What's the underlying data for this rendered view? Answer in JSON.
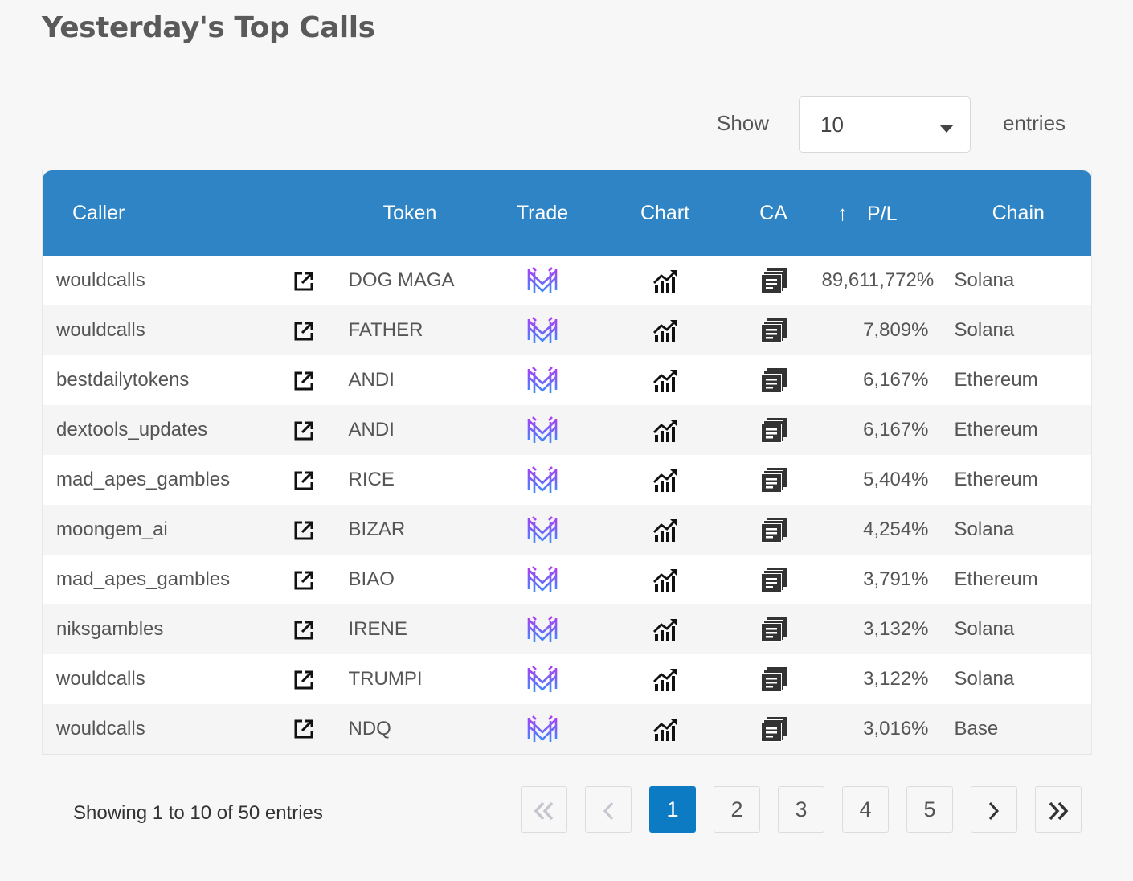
{
  "page": {
    "title": "Yesterday's Top Calls"
  },
  "length_menu": {
    "show_label": "Show",
    "selected": "10",
    "entries_label": "entries"
  },
  "table": {
    "columns": {
      "caller": "Caller",
      "token": "Token",
      "trade": "Trade",
      "chart": "Chart",
      "ca": "CA",
      "pl": "P/L",
      "chain": "Chain"
    },
    "sort": {
      "column": "P/L",
      "direction": "up-arrow-icon"
    },
    "rows": [
      {
        "caller": "wouldcalls",
        "token": "DOG MAGA",
        "pl": "89,611,772%",
        "chain": "Solana"
      },
      {
        "caller": "wouldcalls",
        "token": "FATHER",
        "pl": "7,809%",
        "chain": "Solana"
      },
      {
        "caller": "bestdailytokens",
        "token": "ANDI",
        "pl": "6,167%",
        "chain": "Ethereum"
      },
      {
        "caller": "dextools_updates",
        "token": "ANDI",
        "pl": "6,167%",
        "chain": "Ethereum"
      },
      {
        "caller": "mad_apes_gambles",
        "token": "RICE",
        "pl": "5,404%",
        "chain": "Ethereum"
      },
      {
        "caller": "moongem_ai",
        "token": "BIZAR",
        "pl": "4,254%",
        "chain": "Solana"
      },
      {
        "caller": "mad_apes_gambles",
        "token": "BIAO",
        "pl": "3,791%",
        "chain": "Ethereum"
      },
      {
        "caller": "niksgambles",
        "token": "IRENE",
        "pl": "3,132%",
        "chain": "Solana"
      },
      {
        "caller": "wouldcalls",
        "token": "TRUMPI",
        "pl": "3,122%",
        "chain": "Solana"
      },
      {
        "caller": "wouldcalls",
        "token": "NDQ",
        "pl": "3,016%",
        "chain": "Base"
      }
    ],
    "row_icons": {
      "external": "external-link-icon",
      "trade": "trade-logo-icon",
      "chart": "chart-icon",
      "ca": "copy-icon"
    }
  },
  "info": "Showing 1 to 10 of 50 entries",
  "pagination": {
    "first": "double-chevron-left-icon",
    "prev": "chevron-left-icon",
    "pages": [
      "1",
      "2",
      "3",
      "4",
      "5"
    ],
    "current": "1",
    "next": "chevron-right-icon",
    "last": "double-chevron-right-icon"
  },
  "colors": {
    "header_bg": "#2e84c4",
    "active_page": "#0d7bc4",
    "trade_logo_top": "#b13cf0",
    "trade_logo_bottom": "#3b8cff"
  }
}
